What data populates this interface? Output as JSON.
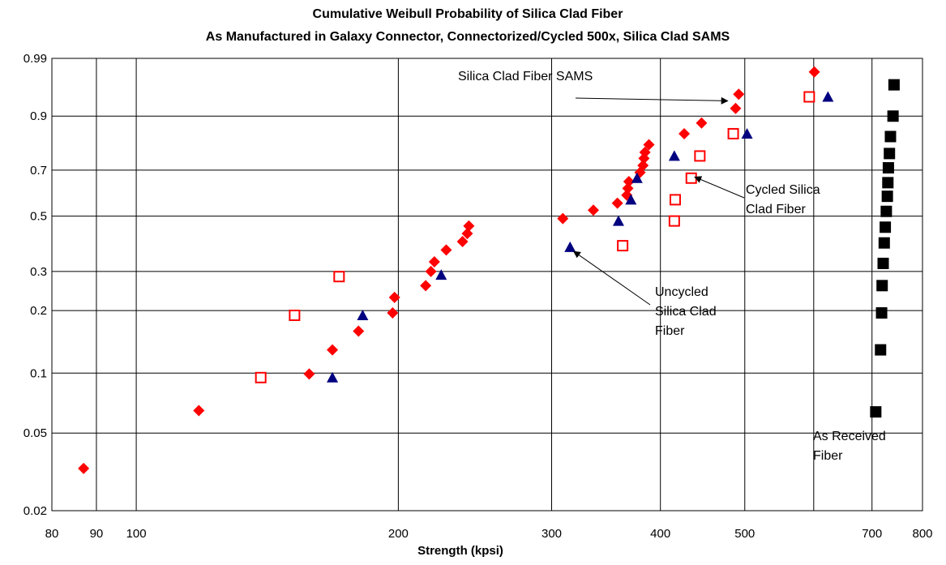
{
  "chart_data": {
    "type": "scatter",
    "title": "Cumulative Weibull Probability of Silica Clad Fiber",
    "subtitle": "As Manufactured in Galaxy Connector, Connectorized/Cycled 500x, Silica Clad SAMS",
    "xlabel": "Strength (kpsi)",
    "ylabel": "",
    "x_scale": "log",
    "y_scale": "weibull",
    "xlim": [
      80,
      800
    ],
    "ylim": [
      0.02,
      0.99
    ],
    "x_ticks": [
      {
        "value": 80,
        "label": "80"
      },
      {
        "value": 90,
        "label": "90"
      },
      {
        "value": 100,
        "label": "100"
      },
      {
        "value": 200,
        "label": "200"
      },
      {
        "value": 300,
        "label": "300"
      },
      {
        "value": 400,
        "label": "400"
      },
      {
        "value": 500,
        "label": "500"
      },
      {
        "value": 700,
        "label": "700"
      },
      {
        "value": 800,
        "label": "800"
      }
    ],
    "x_gridlines": [
      90,
      100,
      200,
      300,
      400,
      500,
      600,
      700
    ],
    "y_ticks": [
      {
        "value": 0.02,
        "label": "0.02"
      },
      {
        "value": 0.05,
        "label": "0.05"
      },
      {
        "value": 0.1,
        "label": "0.1"
      },
      {
        "value": 0.2,
        "label": "0.2"
      },
      {
        "value": 0.3,
        "label": "0.3"
      },
      {
        "value": 0.5,
        "label": "0.5"
      },
      {
        "value": 0.7,
        "label": "0.7"
      },
      {
        "value": 0.9,
        "label": "0.9"
      },
      {
        "value": 0.99,
        "label": "0.99"
      }
    ],
    "grid": true,
    "legend": "none",
    "series": [
      {
        "marker": "diamond",
        "color": "#ff0000",
        "points": [
          [
            87,
            0.033
          ],
          [
            118,
            0.065
          ],
          [
            158,
            0.099
          ],
          [
            168,
            0.13
          ],
          [
            180,
            0.16
          ],
          [
            197,
            0.195
          ],
          [
            198,
            0.23
          ],
          [
            215,
            0.26
          ],
          [
            218,
            0.3
          ],
          [
            220,
            0.33
          ],
          [
            227,
            0.37
          ],
          [
            237,
            0.4
          ],
          [
            240,
            0.43
          ],
          [
            241,
            0.46
          ],
          [
            309,
            0.49
          ],
          [
            335,
            0.525
          ],
          [
            357,
            0.555
          ],
          [
            366,
            0.59
          ],
          [
            367,
            0.62
          ],
          [
            368,
            0.65
          ],
          [
            379,
            0.69
          ],
          [
            382,
            0.72
          ],
          [
            383,
            0.75
          ],
          [
            384,
            0.775
          ],
          [
            388,
            0.805
          ],
          [
            426,
            0.845
          ],
          [
            446,
            0.88
          ],
          [
            488,
            0.92
          ],
          [
            492,
            0.95
          ],
          [
            601,
            0.98
          ]
        ]
      },
      {
        "marker": "triangle",
        "color": "#000080",
        "points": [
          [
            168,
            0.095
          ],
          [
            182,
            0.19
          ],
          [
            224,
            0.29
          ],
          [
            315,
            0.38
          ],
          [
            358,
            0.48
          ],
          [
            370,
            0.57
          ],
          [
            376,
            0.665
          ],
          [
            415,
            0.76
          ],
          [
            503,
            0.845
          ],
          [
            623,
            0.945
          ]
        ]
      },
      {
        "marker": "open-square",
        "color": "#ff0000",
        "points": [
          [
            139,
            0.095
          ],
          [
            152,
            0.19
          ],
          [
            171,
            0.285
          ],
          [
            362,
            0.385
          ],
          [
            415,
            0.48
          ],
          [
            416,
            0.57
          ],
          [
            434,
            0.665
          ],
          [
            444,
            0.76
          ],
          [
            485,
            0.845
          ],
          [
            593,
            0.945
          ]
        ]
      },
      {
        "marker": "square",
        "color": "#000000",
        "points": [
          [
            707,
            0.064
          ],
          [
            716,
            0.13
          ],
          [
            718,
            0.195
          ],
          [
            719,
            0.26
          ],
          [
            721,
            0.325
          ],
          [
            723,
            0.395
          ],
          [
            725,
            0.455
          ],
          [
            727,
            0.52
          ],
          [
            729,
            0.585
          ],
          [
            730,
            0.645
          ],
          [
            731,
            0.71
          ],
          [
            733,
            0.77
          ],
          [
            735,
            0.835
          ],
          [
            740,
            0.9
          ],
          [
            742,
            0.965
          ]
        ]
      }
    ],
    "annotations": [
      {
        "lines": [
          "Silica Clad Fiber SAMS"
        ],
        "arrow_to": [
          478,
          0.937
        ]
      },
      {
        "lines": [
          "Cycled Silica",
          "Clad  Fiber"
        ],
        "arrow_to": [
          438,
          0.67
        ]
      },
      {
        "lines": [
          "Uncycled",
          "Silica Clad",
          "Fiber"
        ],
        "arrow_to": [
          318,
          0.365
        ]
      },
      {
        "lines": [
          "As Received",
          "Fiber"
        ]
      }
    ]
  }
}
